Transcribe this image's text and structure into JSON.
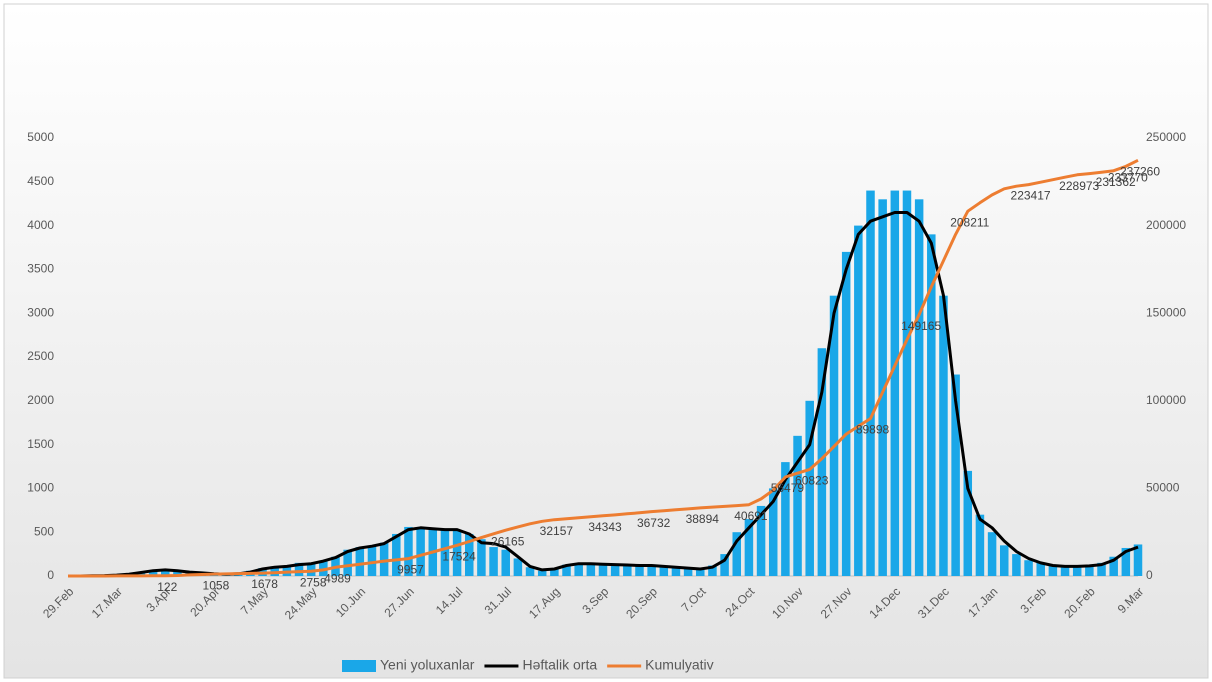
{
  "chart_data": {
    "type": "combo",
    "categories": [
      "29.Feb",
      null,
      null,
      null,
      "17.Mar",
      null,
      null,
      null,
      "3.Apr",
      null,
      null,
      null,
      "20.Apr",
      null,
      null,
      null,
      "7.May",
      null,
      null,
      null,
      "24.May",
      null,
      null,
      null,
      "10.Jun",
      null,
      null,
      null,
      "27.Jun",
      null,
      null,
      null,
      "14.Jul",
      null,
      null,
      null,
      "31.Jul",
      null,
      null,
      null,
      "17.Aug",
      null,
      null,
      null,
      "3.Sep",
      null,
      null,
      null,
      "20.Sep",
      null,
      null,
      null,
      "7.Oct",
      null,
      null,
      null,
      "24.Oct",
      null,
      null,
      null,
      "10.Nov",
      null,
      null,
      null,
      "27.Nov",
      null,
      null,
      null,
      "14.Dec",
      null,
      null,
      null,
      "31.Dec",
      null,
      null,
      null,
      "17.Jan",
      null,
      null,
      null,
      "3.Feb",
      null,
      null,
      null,
      "20.Feb",
      null,
      null,
      null,
      "9.Mar"
    ],
    "series": [
      {
        "name": "Yeni yoluxanlar",
        "type": "bar",
        "color": "#1aa7e8",
        "values": [
          0,
          0,
          3,
          6,
          10,
          25,
          45,
          60,
          70,
          50,
          40,
          30,
          25,
          20,
          30,
          60,
          90,
          110,
          110,
          150,
          150,
          170,
          220,
          300,
          330,
          340,
          380,
          480,
          560,
          540,
          540,
          520,
          520,
          480,
          420,
          330,
          300,
          200,
          100,
          60,
          80,
          130,
          140,
          140,
          130,
          130,
          120,
          120,
          120,
          110,
          90,
          80,
          70,
          120,
          250,
          500,
          650,
          800,
          1000,
          1300,
          1600,
          2000,
          2600,
          3200,
          3700,
          4000,
          4400,
          4300,
          4400,
          4400,
          4300,
          3900,
          3200,
          2300,
          1200,
          700,
          500,
          350,
          250,
          180,
          150,
          120,
          110,
          110,
          120,
          150,
          220,
          320,
          360
        ]
      },
      {
        "name": "Həftalik orta",
        "type": "line",
        "color": "#000000",
        "values": [
          0,
          0,
          2,
          5,
          10,
          20,
          40,
          60,
          70,
          60,
          45,
          35,
          25,
          20,
          25,
          45,
          80,
          100,
          110,
          130,
          140,
          170,
          210,
          280,
          320,
          340,
          370,
          450,
          530,
          550,
          540,
          530,
          530,
          480,
          380,
          370,
          330,
          220,
          110,
          70,
          80,
          120,
          140,
          140,
          135,
          130,
          125,
          120,
          120,
          110,
          100,
          90,
          80,
          100,
          180,
          400,
          550,
          700,
          850,
          1100,
          1300,
          1500,
          2100,
          3000,
          3500,
          3900,
          4050,
          4100,
          4150,
          4150,
          4050,
          3800,
          3200,
          2000,
          1000,
          650,
          550,
          400,
          280,
          200,
          150,
          120,
          110,
          110,
          115,
          130,
          180,
          280,
          330
        ]
      },
      {
        "name": "Kumulyativ",
        "type": "line",
        "axis": "y2",
        "color": "#ed7d31",
        "values": [
          0,
          0,
          5,
          15,
          30,
          50,
          70,
          95,
          122,
          300,
          600,
          850,
          1058,
          1200,
          1350,
          1500,
          1678,
          1900,
          2200,
          2500,
          2758,
          3500,
          4989,
          5800,
          6700,
          7600,
          8500,
          9200,
          9957,
          11800,
          13700,
          15600,
          17524,
          19700,
          21900,
          24100,
          26165,
          28000,
          29800,
          31200,
          32157,
          32700,
          33300,
          33800,
          34343,
          34900,
          35500,
          36100,
          36732,
          37300,
          37800,
          38300,
          38894,
          39300,
          39700,
          40200,
          40691,
          44000,
          49000,
          56479,
          58700,
          60823,
          67000,
          74000,
          81000,
          85500,
          89898,
          105000,
          120000,
          135000,
          149165,
          165000,
          180000,
          195000,
          208211,
          213000,
          217500,
          221000,
          222500,
          223417,
          224800,
          226200,
          227600,
          228973,
          229700,
          230500,
          231362,
          233770,
          237260
        ],
        "value_labels": [
          null,
          null,
          null,
          null,
          null,
          null,
          null,
          null,
          "122",
          null,
          null,
          null,
          "1058",
          null,
          null,
          null,
          "1678",
          null,
          null,
          null,
          "2758",
          null,
          "4989",
          null,
          null,
          null,
          null,
          null,
          "9957",
          null,
          null,
          null,
          "17524",
          null,
          null,
          null,
          "26165",
          null,
          null,
          null,
          "32157",
          null,
          null,
          null,
          "34343",
          null,
          null,
          null,
          "36732",
          null,
          null,
          null,
          "38894",
          null,
          null,
          null,
          "40691",
          null,
          null,
          "56479",
          null,
          "60823",
          null,
          null,
          null,
          null,
          "89898",
          null,
          null,
          null,
          "149165",
          null,
          null,
          null,
          "208211",
          null,
          null,
          null,
          null,
          "223417",
          null,
          null,
          null,
          "228973",
          null,
          null,
          "231362",
          "233770",
          "237260"
        ]
      }
    ],
    "ylim": [
      0,
      5000
    ],
    "yticks": [
      0,
      500,
      1000,
      1500,
      2000,
      2500,
      3000,
      3500,
      4000,
      4500,
      5000
    ],
    "y2lim": [
      0,
      250000
    ],
    "y2ticks": [
      0,
      50000,
      100000,
      150000,
      200000,
      250000
    ],
    "legend": "bottom"
  }
}
